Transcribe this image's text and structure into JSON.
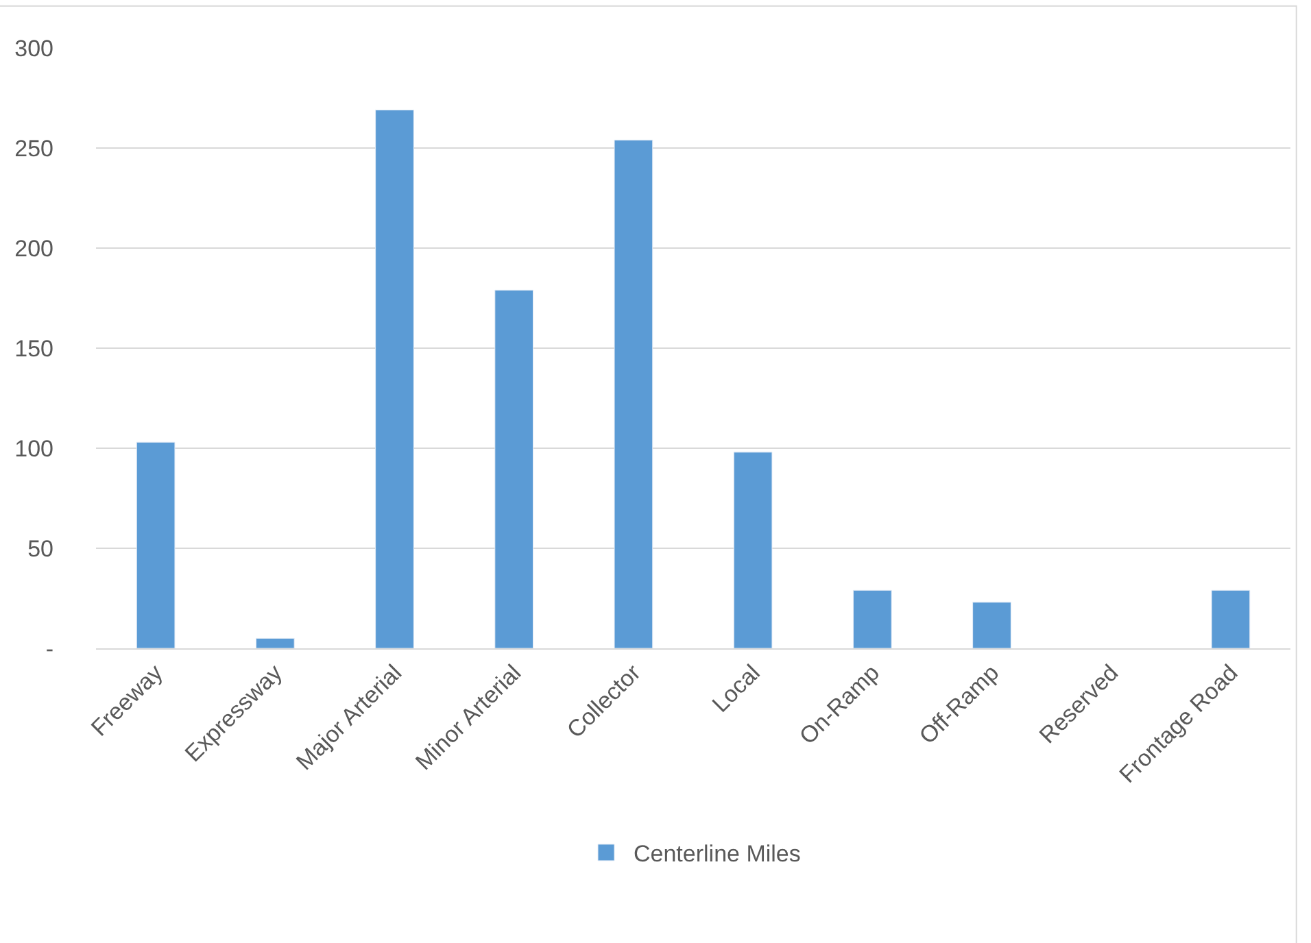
{
  "chart_data": {
    "type": "bar",
    "categories": [
      "Freeway",
      "Expressway",
      "Major Arterial",
      "Minor Arterial",
      "Collector",
      "Local",
      "On-Ramp",
      "Off-Ramp",
      "Reserved",
      "Frontage Road"
    ],
    "series": [
      {
        "name": "Centerline Miles",
        "color": "#5b9bd5",
        "values": [
          103,
          5,
          269,
          179,
          254,
          98,
          29,
          23,
          null,
          29
        ]
      }
    ],
    "ylim": [
      0,
      300
    ],
    "yticks": [
      {
        "value": 0,
        "label": "-"
      },
      50,
      100,
      150,
      200,
      250,
      300
    ],
    "grid": "y",
    "legend": "bottom"
  }
}
